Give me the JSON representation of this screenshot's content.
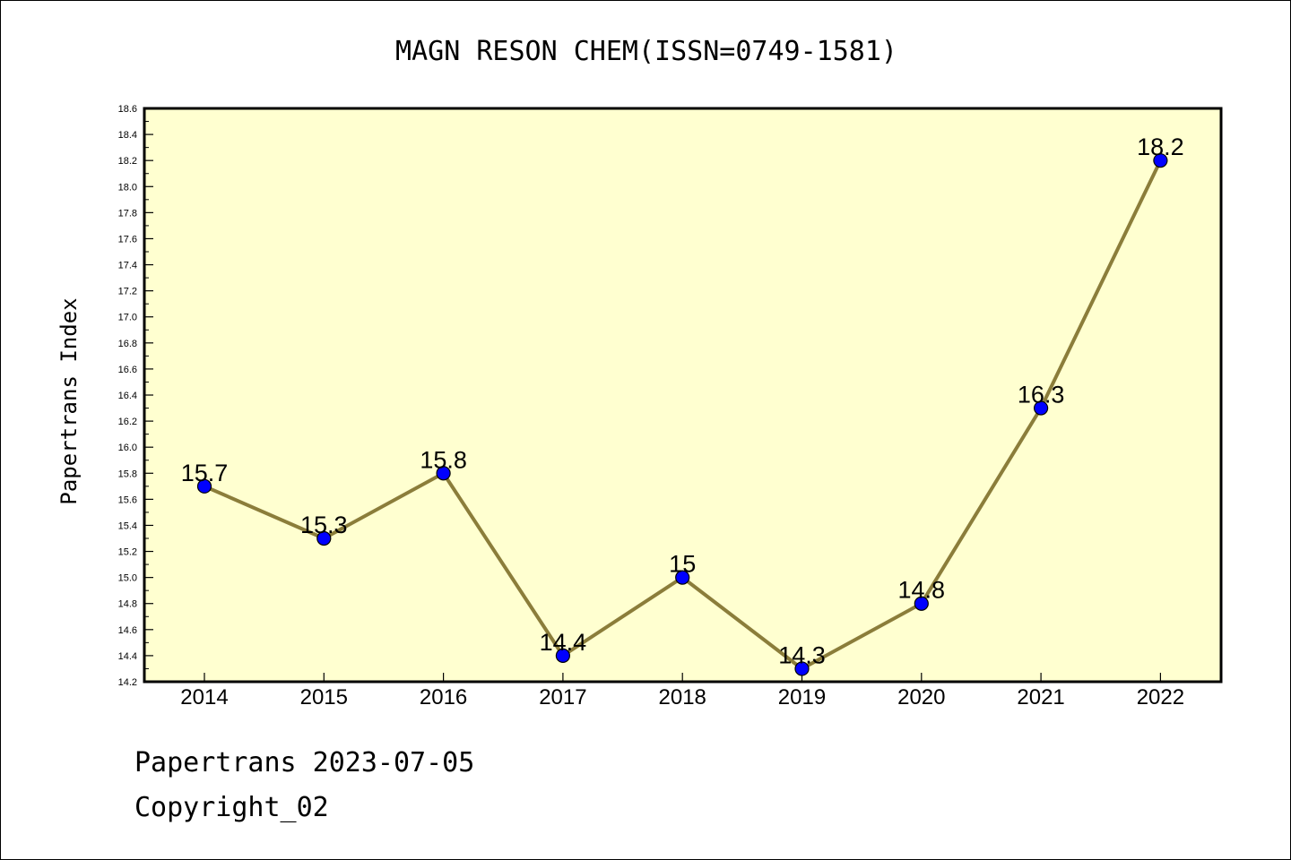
{
  "chart_data": {
    "type": "line",
    "title": "MAGN RESON CHEM(ISSN=0749-1581)",
    "ylabel": "Papertrans Index",
    "xlabel": "",
    "categories": [
      "2014",
      "2015",
      "2016",
      "2017",
      "2018",
      "2019",
      "2020",
      "2021",
      "2022"
    ],
    "series": [
      {
        "values": [
          15.7,
          15.3,
          15.8,
          14.4,
          15.0,
          14.3,
          14.8,
          16.3,
          18.2
        ]
      }
    ],
    "data_labels": [
      "15.7",
      "15.3",
      "15.8",
      "14.4",
      "15",
      "14.3",
      "14.8",
      "16.3",
      "18.2"
    ],
    "ylim": [
      14.2,
      18.6
    ],
    "yticks": [
      "14.2",
      "14.4",
      "14.6",
      "14.8",
      "15.0",
      "15.2",
      "15.4",
      "15.6",
      "15.8",
      "16.0",
      "16.2",
      "16.4",
      "16.6",
      "16.8",
      "17.0",
      "17.2",
      "17.4",
      "17.6",
      "17.8",
      "18.0",
      "18.2",
      "18.4",
      "18.6"
    ],
    "grid": false,
    "colors": {
      "plot_bg": "#ffffd0",
      "line": "#8b7d3a",
      "marker": "#0000ff"
    }
  },
  "footer": {
    "date_line": "Papertrans 2023-07-05",
    "copyright": "Copyright_02"
  }
}
